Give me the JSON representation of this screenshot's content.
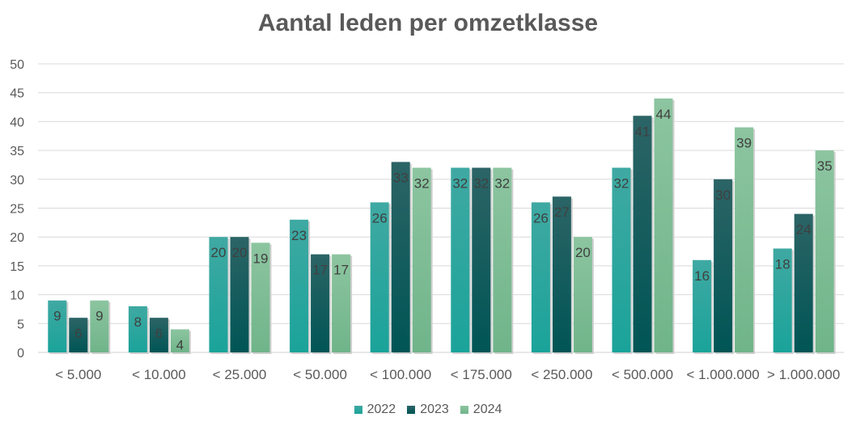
{
  "chart_data": {
    "type": "bar",
    "title": "Aantal leden per omzetklasse",
    "xlabel": "",
    "ylabel": "",
    "ylim": [
      0,
      50
    ],
    "yticks": [
      0,
      5,
      10,
      15,
      20,
      25,
      30,
      35,
      40,
      45,
      50
    ],
    "grid": true,
    "legend_position": "bottom",
    "categories": [
      "< 5.000",
      "< 10.000",
      "< 25.000",
      "< 50.000",
      "< 100.000",
      "< 175.000",
      "< 250.000",
      "< 500.000",
      "< 1.000.000",
      "> 1.000.000"
    ],
    "series": [
      {
        "name": "2022",
        "color": "#1aa39a",
        "color_top": "#3fa9a2",
        "values": [
          9,
          8,
          20,
          23,
          26,
          32,
          26,
          32,
          16,
          18
        ]
      },
      {
        "name": "2023",
        "color": "#005555",
        "color_top": "#2c6466",
        "values": [
          6,
          6,
          20,
          17,
          33,
          32,
          27,
          41,
          30,
          24
        ]
      },
      {
        "name": "2024",
        "color": "#70b48a",
        "color_top": "#8cc5a0",
        "values": [
          9,
          4,
          19,
          17,
          32,
          32,
          20,
          44,
          39,
          35
        ]
      }
    ]
  }
}
